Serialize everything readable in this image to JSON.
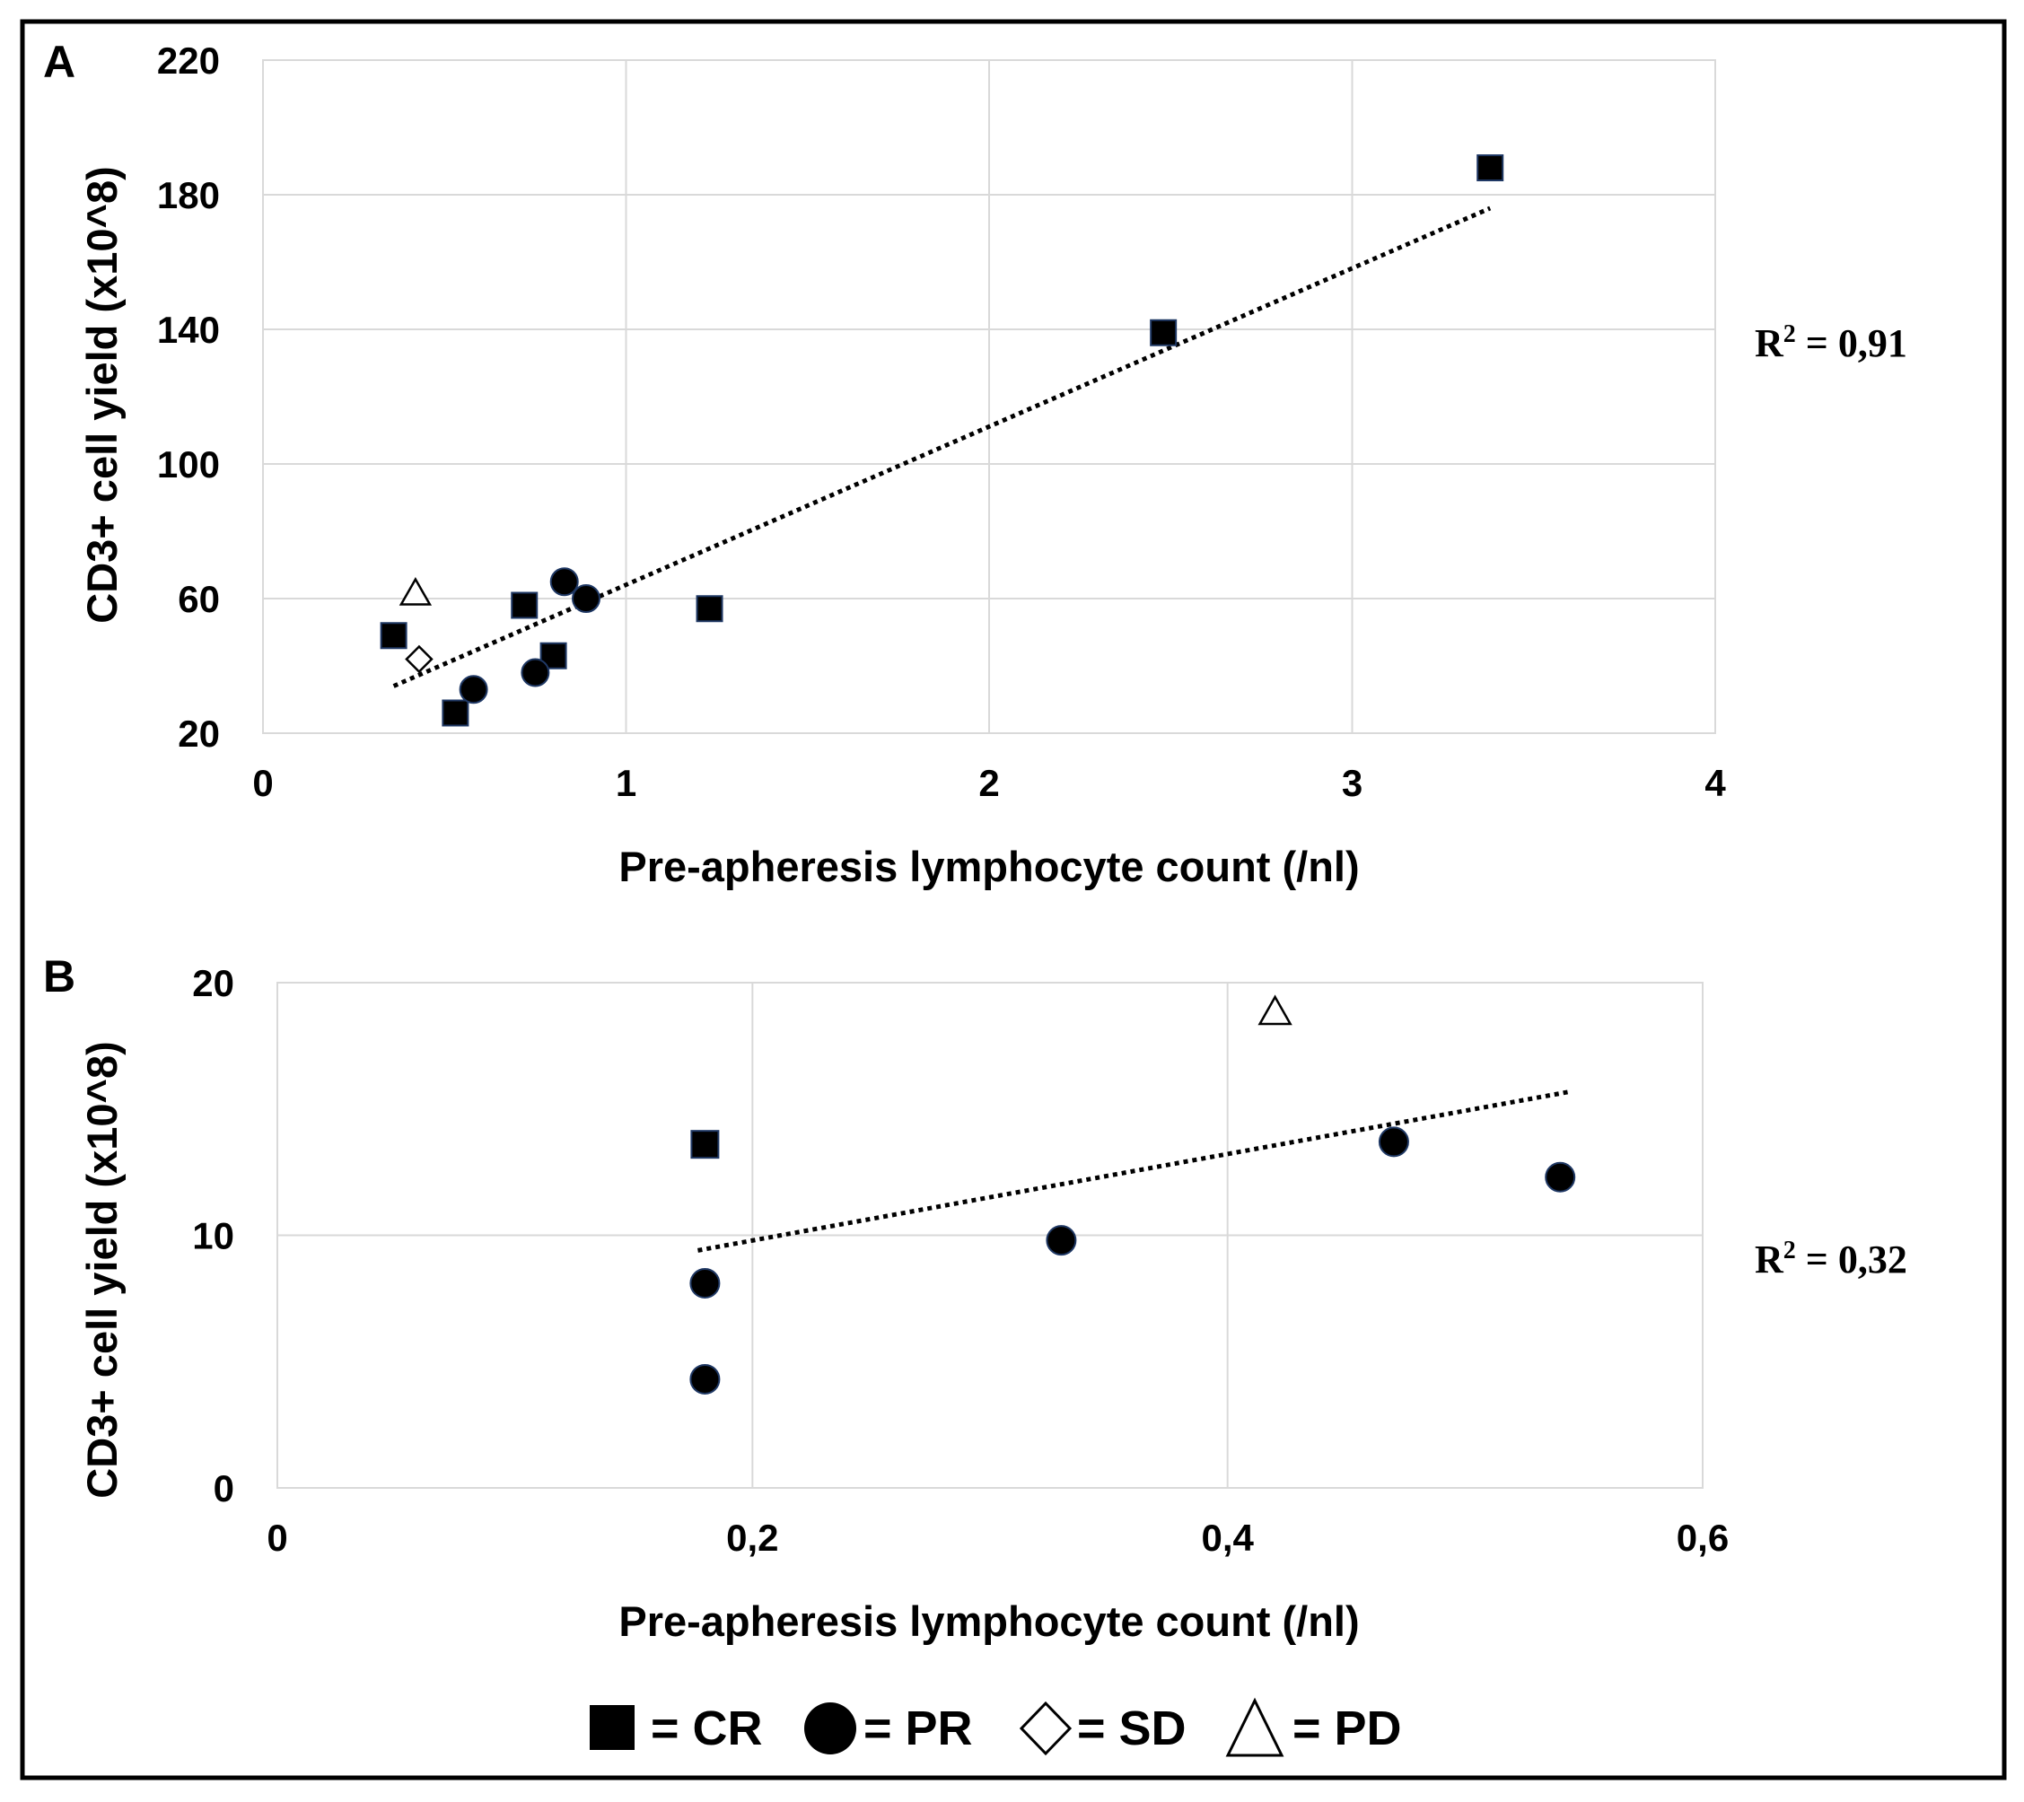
{
  "chart_data": [
    {
      "type": "scatter",
      "panel_label": "A",
      "xlabel": "Pre-apheresis lymphocyte count (/nl)",
      "ylabel": "CD3+ cell yield (x10^8)",
      "xlim": [
        0,
        4
      ],
      "ylim": [
        20,
        220
      ],
      "x_ticks": [
        0,
        1,
        2,
        3,
        4
      ],
      "x_tick_labels": [
        "0",
        "1",
        "2",
        "3",
        "4"
      ],
      "y_ticks": [
        20,
        60,
        100,
        140,
        180,
        220
      ],
      "y_tick_labels": [
        "20",
        "60",
        "100",
        "140",
        "180",
        "220"
      ],
      "grid": true,
      "r2_label": "R",
      "r2_sup": "2",
      "r2_value": " = 0,91",
      "trendline": {
        "x": [
          0.36,
          3.38
        ],
        "y": [
          34,
          176
        ]
      },
      "series": [
        {
          "name": "CR",
          "marker": "square",
          "x": [
            0.36,
            0.53,
            0.72,
            0.8,
            1.23,
            2.48,
            3.38
          ],
          "y": [
            49,
            26,
            58,
            43,
            57,
            139,
            188
          ]
        },
        {
          "name": "PR",
          "marker": "circle",
          "x": [
            0.58,
            0.75,
            0.83,
            0.89
          ],
          "y": [
            33,
            38,
            65,
            60
          ]
        },
        {
          "name": "SD",
          "marker": "diamond",
          "x": [
            0.43
          ],
          "y": [
            42
          ]
        },
        {
          "name": "PD",
          "marker": "triangle",
          "x": [
            0.42
          ],
          "y": [
            62
          ]
        }
      ]
    },
    {
      "type": "scatter",
      "panel_label": "B",
      "xlabel": "Pre-apheresis lymphocyte count (/nl)",
      "ylabel": "CD3+ cell yield (x10^8)",
      "xlim": [
        0,
        0.6
      ],
      "ylim": [
        0,
        20
      ],
      "x_ticks": [
        0,
        0.2,
        0.4,
        0.6
      ],
      "x_tick_labels": [
        "0",
        "0,2",
        "0,4",
        "0,6"
      ],
      "y_ticks": [
        0,
        10,
        20
      ],
      "y_tick_labels": [
        "0",
        "10",
        "20"
      ],
      "grid": true,
      "r2_label": "R",
      "r2_sup": "2",
      "r2_value": " = 0,32",
      "trendline": {
        "x": [
          0.177,
          0.545
        ],
        "y": [
          9.4,
          15.7
        ]
      },
      "series": [
        {
          "name": "CR",
          "marker": "square",
          "x": [
            0.18
          ],
          "y": [
            13.6
          ]
        },
        {
          "name": "PR",
          "marker": "circle",
          "x": [
            0.18,
            0.18,
            0.33,
            0.47,
            0.54
          ],
          "y": [
            8.1,
            4.3,
            9.8,
            13.7,
            12.3
          ]
        },
        {
          "name": "PD",
          "marker": "triangle",
          "x": [
            0.42
          ],
          "y": [
            18.9
          ]
        }
      ]
    }
  ],
  "legend": [
    {
      "marker": "square",
      "label": "= CR"
    },
    {
      "marker": "circle",
      "label": "= PR"
    },
    {
      "marker": "diamond",
      "label": "= SD"
    },
    {
      "marker": "triangle",
      "label": "= PD"
    }
  ]
}
